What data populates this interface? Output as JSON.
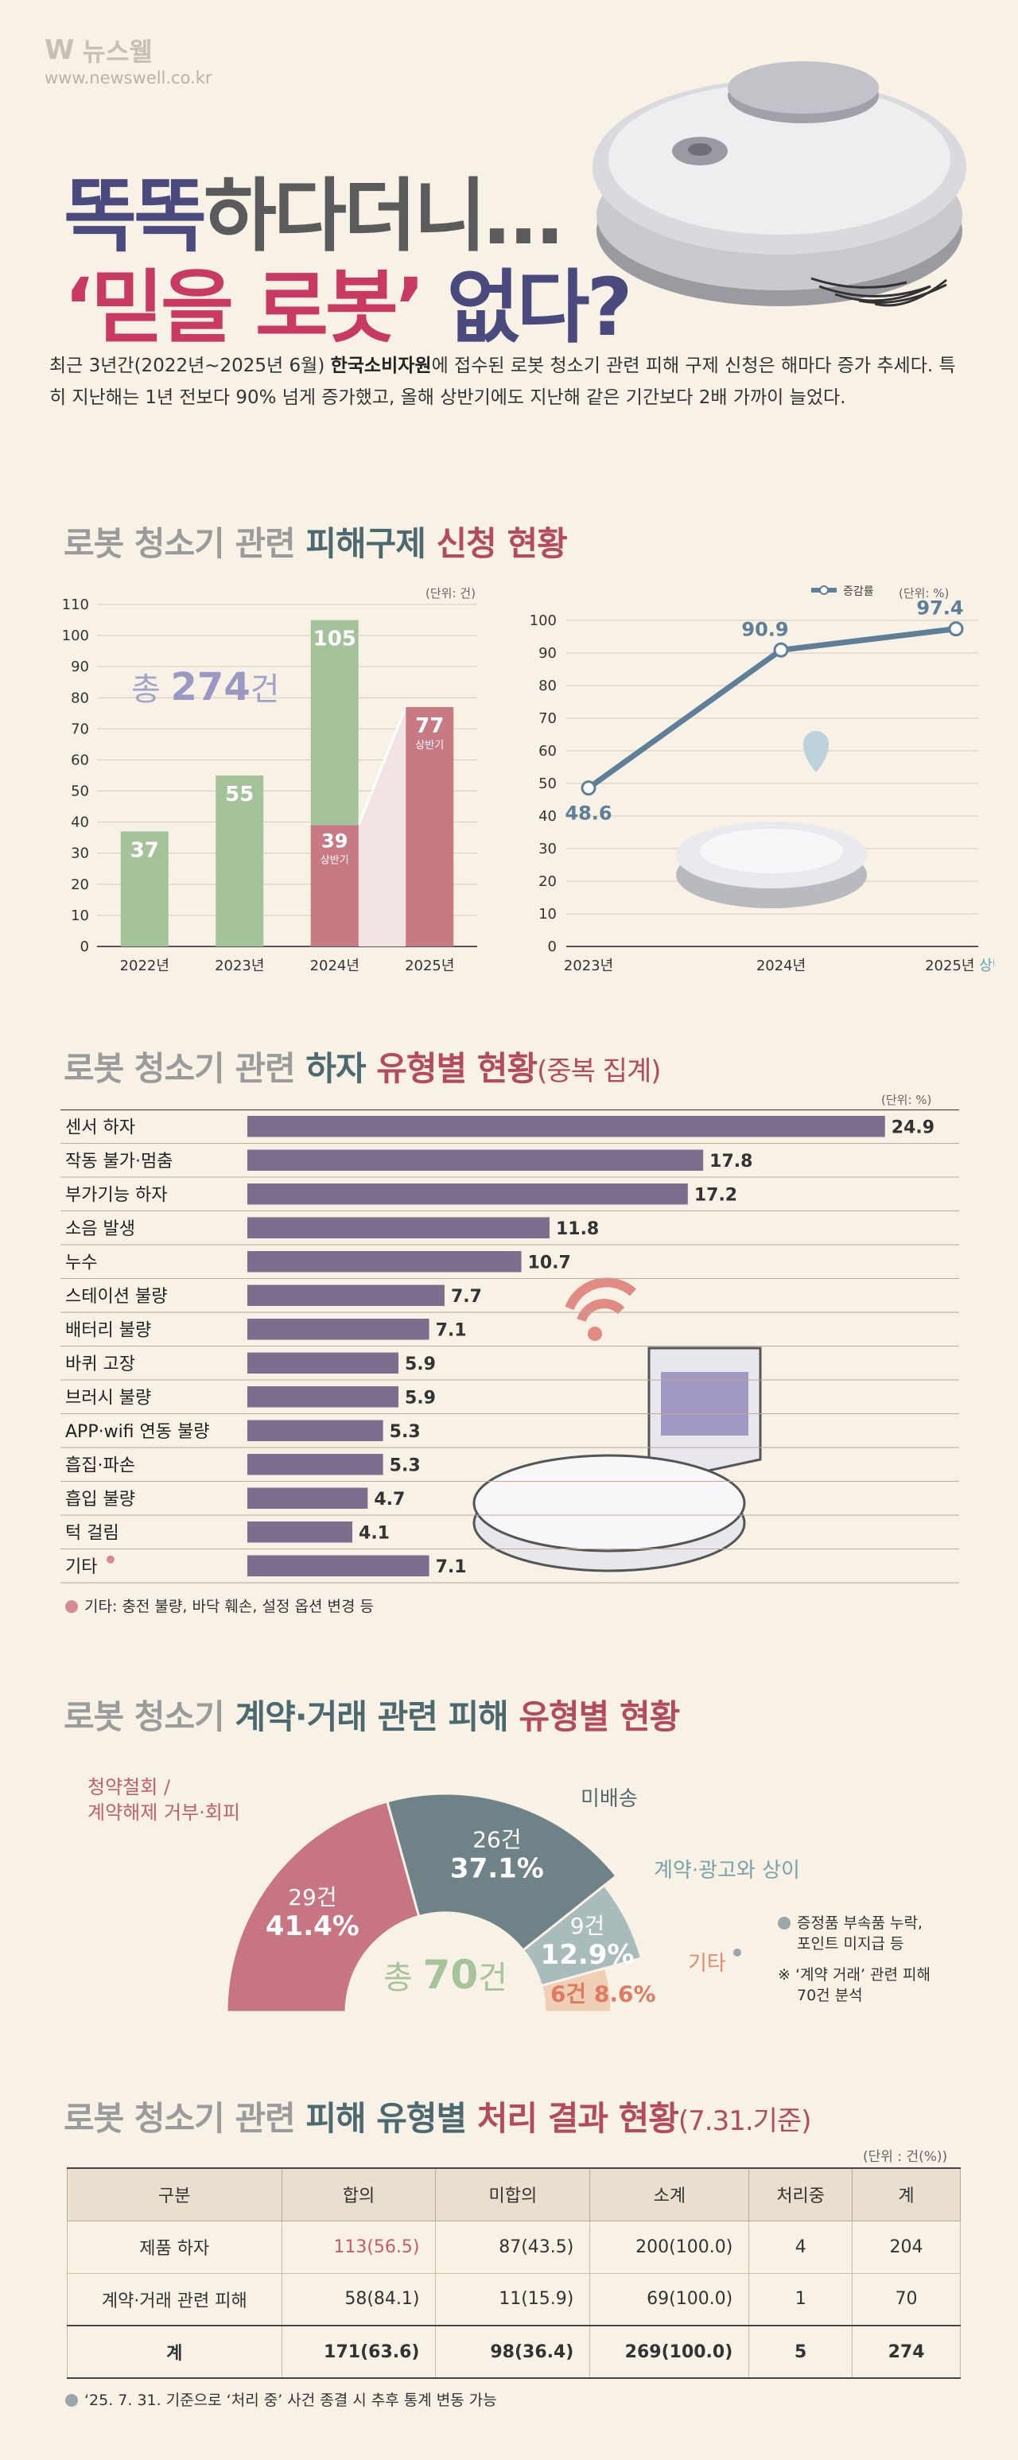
{
  "header": {
    "logo_mark": "W",
    "logo_name": "뉴스웰",
    "url": "www.newswell.co.kr",
    "title_line1_a": "똑똑",
    "title_line1_b": "하다더니…",
    "title_line2_q1": "‘",
    "title_line2_a": "믿을",
    "title_line2_b": "로봇",
    "title_line2_q2": "’",
    "title_line2_c": " 없다?"
  },
  "intro": {
    "part1": "최근 3년간(2022년~2025년 6월) ",
    "bold": "한국소비자원",
    "part2": "에 접수된 로봇 청소기 관련 피해 구제 신청은 해마다 증가 추세다. 특히 지난해는 1년 전보다 90% 넘게 증가했고, 올해 상반기에도 지난해 같은 기간보다 2배 가까이 늘었다."
  },
  "section1": {
    "title_a": "로봇 청소기 관련 ",
    "title_b": "피해구제 ",
    "title_c": "신청 현황",
    "unit_left": "(단위: 건)",
    "unit_right": "(단위: %)",
    "total_label": "총 ",
    "total_value": "274",
    "total_suffix": "건",
    "half_label_2024": "상반기",
    "half_label_2025": "상반기"
  },
  "section2": {
    "title_a": "로봇 청소기 관련 ",
    "title_b": "하자 ",
    "title_c": "유형별 현황",
    "title_d": "(중복 집계)",
    "unit": "(단위: %)",
    "note": "기타: 충전 불량, 바닥 훼손, 설정 옵션 변경 등"
  },
  "section3": {
    "title_a": "로봇 청소기 ",
    "title_b": "계약·거래 ",
    "title_c": "관련 피해 ",
    "title_d": "유형별 현황",
    "center_label": "총 ",
    "center_value": "70",
    "center_suffix": "건",
    "label_cancel_1": "청약철회 /",
    "label_cancel_2": "계약해제 거부·회피",
    "label_undelivered": "미배송",
    "label_mismatch": "계약·광고와 상이",
    "label_other": "기타",
    "note1_1": "증정품 부속품 누락,",
    "note1_2": "포인트 미지급 등",
    "note2_1": "※ ‘계약 거래’ 관련 피해",
    "note2_2": "70건 분석"
  },
  "section4": {
    "title_a": "로봇 청소기 ",
    "title_b": "관련 ",
    "title_c": "피해 유형별 ",
    "title_d": "처리 결과 현황",
    "title_e": "(7.31.기준)",
    "unit": "(단위 : 건(%))",
    "headers": [
      "구분",
      "합의",
      "미합의",
      "소계",
      "처리중",
      "계"
    ],
    "rows": [
      [
        "제품 하자",
        "113(56.5)",
        "87(43.5)",
        "200(100.0)",
        "4",
        "204"
      ],
      [
        "계약·거래 관련 피해",
        "58(84.1)",
        "11(15.9)",
        "69(100.0)",
        "1",
        "70"
      ],
      [
        "계",
        "171(63.6)",
        "98(36.4)",
        "269(100.0)",
        "5",
        "274"
      ]
    ],
    "note": "‘25. 7. 31. 기준으로 ‘처리 중’ 사건 종결 시 추후 통계 변동 가능"
  },
  "colors": {
    "green": "#a4c39a",
    "pink": "#c77a84",
    "pink_light": "#f3e4e4",
    "line": "#5f7e98",
    "bar": "#7c6f8e",
    "pie_pink": "#c87583",
    "pie_slate": "#6e8288",
    "pie_teal": "#a9bcbc",
    "pie_peach": "#efcfb6"
  },
  "chart_data": [
    {
      "type": "bar",
      "categories": [
        "2022년",
        "2023년",
        "2024년",
        "2025년"
      ],
      "series": [
        {
          "values": [
            37,
            55,
            105,
            77
          ]
        }
      ],
      "first_half": {
        "2024년": 39,
        "2025년": 77
      },
      "ylim": [
        0,
        110
      ],
      "yticks": [
        0,
        10,
        20,
        30,
        40,
        50,
        60,
        70,
        80,
        90,
        100,
        110
      ],
      "grid": true
    },
    {
      "type": "line",
      "x": [
        "2023년",
        "2024년",
        "2025년"
      ],
      "x_suffix_last": "상반기",
      "series": [
        {
          "name": "증감률",
          "values": [
            48.6,
            90.9,
            97.4
          ]
        }
      ],
      "ylim": [
        0,
        100
      ],
      "yticks": [
        0,
        10,
        20,
        30,
        40,
        50,
        60,
        70,
        80,
        90,
        100
      ],
      "legend": "top-right",
      "grid": true
    },
    {
      "type": "bar",
      "orientation": "horizontal",
      "categories": [
        "센서 하자",
        "작동 불가·멈춤",
        "부가기능 하자",
        "소음 발생",
        "누수",
        "스테이션 불량",
        "배터리 불량",
        "바퀴 고장",
        "브러시 불량",
        "APP·wifi 연동 불량",
        "흡집·파손",
        "흡입 불량",
        "턱 걸림",
        "기타"
      ],
      "values": [
        24.9,
        17.8,
        17.2,
        11.8,
        10.7,
        7.7,
        7.1,
        5.9,
        5.9,
        5.3,
        5.3,
        4.7,
        4.1,
        7.1
      ],
      "xlim": [
        0,
        25
      ]
    },
    {
      "type": "pie",
      "style": "half-donut",
      "labels": [
        "청약철회 / 계약해제 거부·회피",
        "미배송",
        "계약·광고와 상이",
        "기타"
      ],
      "counts": [
        29,
        26,
        9,
        6
      ],
      "counts_text": [
        "29건",
        "26건",
        "9건",
        "6건"
      ],
      "percents": [
        41.4,
        37.1,
        12.9,
        8.6
      ],
      "percents_text": [
        "41.4%",
        "37.1%",
        "12.9%",
        "8.6%"
      ],
      "total": 70
    }
  ]
}
